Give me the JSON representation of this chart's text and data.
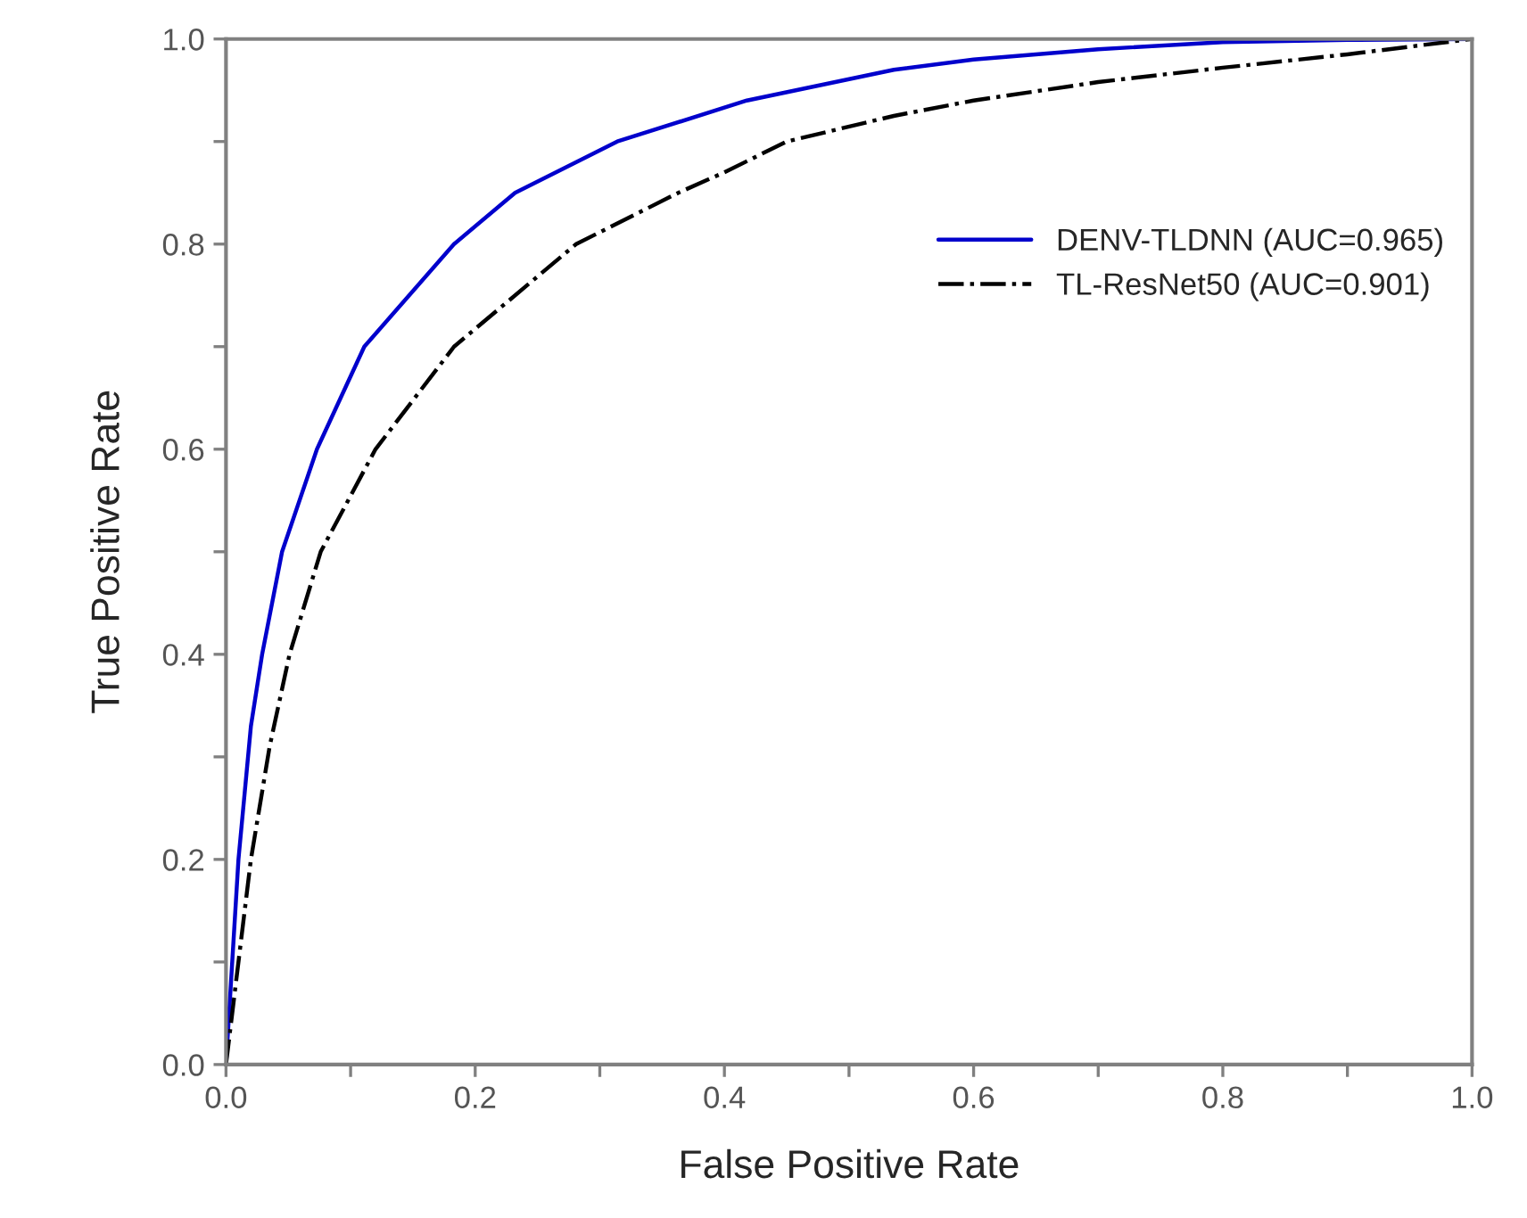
{
  "chart_data": {
    "type": "line",
    "xlabel": "False Positive Rate",
    "ylabel": "True Positive Rate",
    "xlim": [
      0,
      1
    ],
    "ylim": [
      0,
      1
    ],
    "xticks": [
      {
        "value": 0,
        "label": "0.0"
      },
      {
        "value": 0.1,
        "label": null
      },
      {
        "value": 0.2,
        "label": "0.2"
      },
      {
        "value": 0.3,
        "label": null
      },
      {
        "value": 0.4,
        "label": "0.4"
      },
      {
        "value": 0.5,
        "label": null
      },
      {
        "value": 0.6,
        "label": "0.6"
      },
      {
        "value": 0.7,
        "label": null
      },
      {
        "value": 0.8,
        "label": "0.8"
      },
      {
        "value": 0.9,
        "label": null
      },
      {
        "value": 1,
        "label": "1.0"
      }
    ],
    "yticks": [
      {
        "value": 0,
        "label": "0.0"
      },
      {
        "value": 0.1,
        "label": null
      },
      {
        "value": 0.2,
        "label": "0.2"
      },
      {
        "value": 0.3,
        "label": null
      },
      {
        "value": 0.4,
        "label": "0.4"
      },
      {
        "value": 0.5,
        "label": null
      },
      {
        "value": 0.6,
        "label": "0.6"
      },
      {
        "value": 0.7,
        "label": null
      },
      {
        "value": 0.8,
        "label": "0.8"
      },
      {
        "value": 0.9,
        "label": null
      },
      {
        "value": 1,
        "label": "1.0"
      }
    ],
    "grid": false,
    "legend": "right",
    "marker": "none",
    "series": [
      {
        "name": "DENV-TLDNN (AUC=0.965)",
        "color": "#0000cc",
        "line_style": "solid",
        "x": [
          0,
          0.003,
          0.01,
          0.02,
          0.029,
          0.045,
          0.073,
          0.111,
          0.183,
          0.232,
          0.314,
          0.418,
          0.536,
          0.6,
          0.7,
          0.8,
          0.9,
          1.0
        ],
        "values": [
          0,
          0.06,
          0.2,
          0.33,
          0.4,
          0.5,
          0.6,
          0.7,
          0.8,
          0.85,
          0.9,
          0.94,
          0.97,
          0.98,
          0.99,
          0.997,
          0.999,
          1.0
        ]
      },
      {
        "name": "TL-ResNet50 (AUC=0.901)",
        "color": "#000000",
        "line_style": "dashdot",
        "x": [
          0,
          0.005,
          0.02,
          0.035,
          0.051,
          0.076,
          0.12,
          0.183,
          0.281,
          0.363,
          0.4,
          0.45,
          0.536,
          0.6,
          0.7,
          0.8,
          0.9,
          1.0
        ],
        "values": [
          0,
          0.05,
          0.2,
          0.31,
          0.4,
          0.5,
          0.6,
          0.7,
          0.8,
          0.85,
          0.87,
          0.9,
          0.925,
          0.94,
          0.958,
          0.972,
          0.985,
          1.0
        ]
      }
    ]
  }
}
